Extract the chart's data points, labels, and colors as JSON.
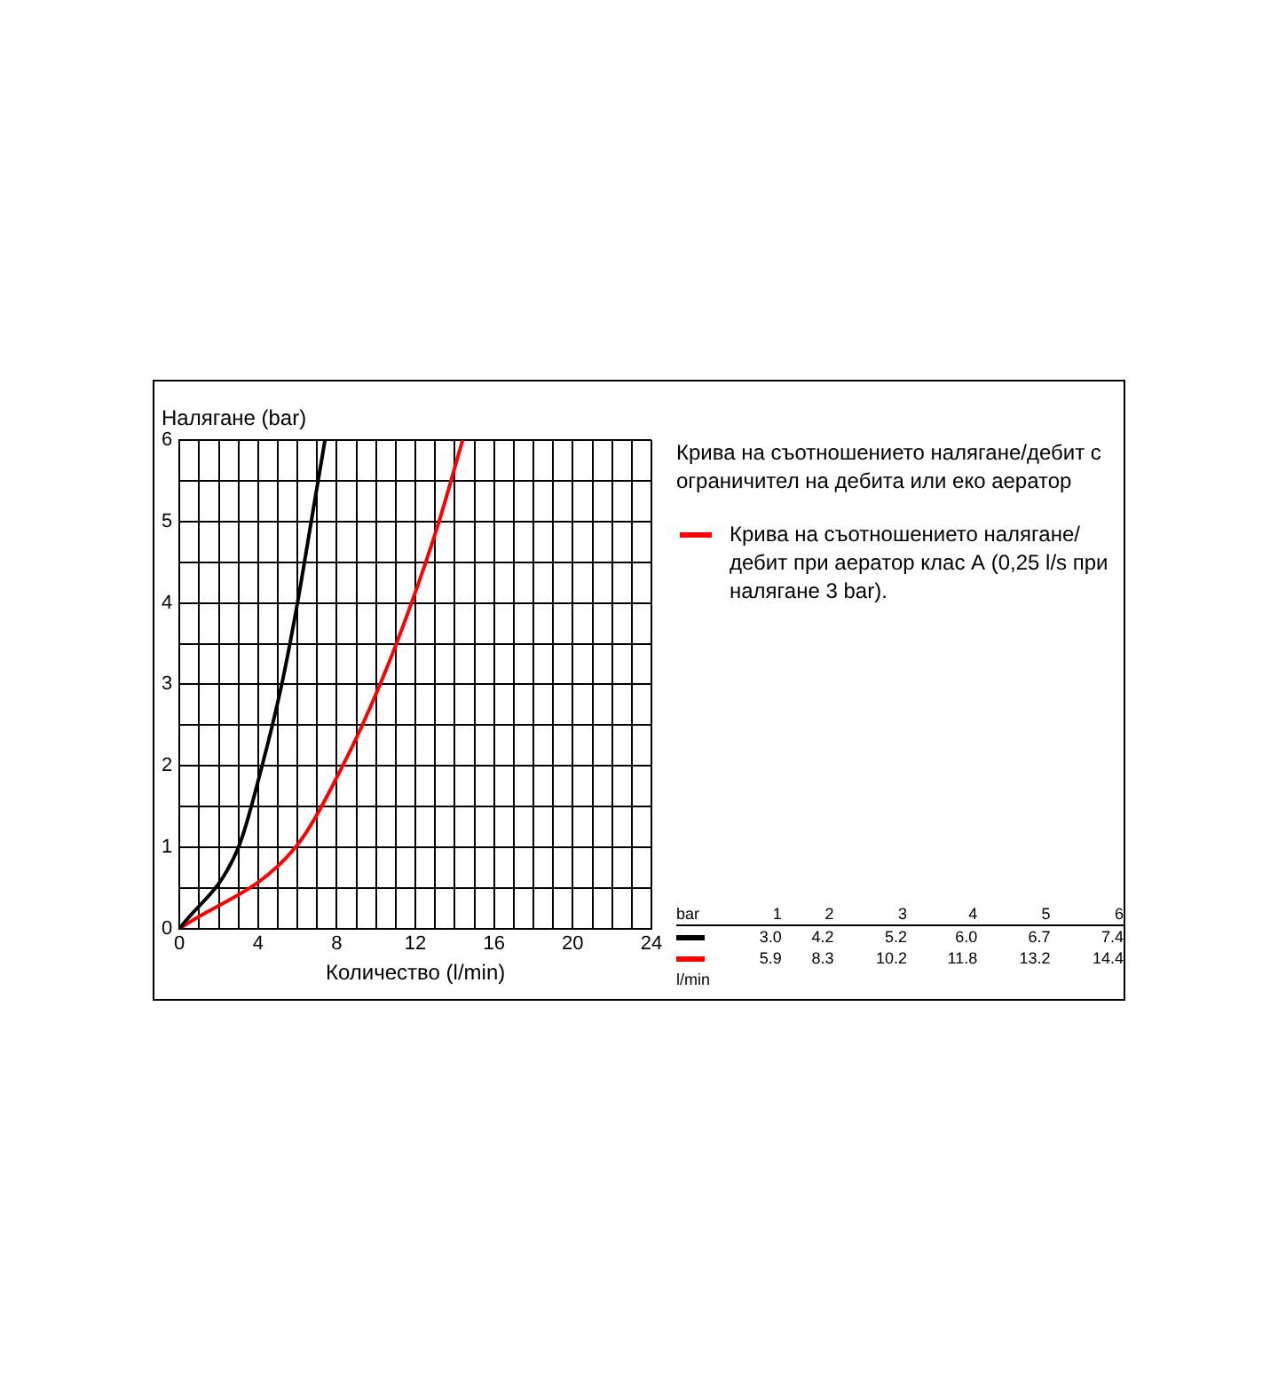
{
  "chart_data": {
    "type": "line",
    "xlabel": "Количество (l/min)",
    "ylabel": "Налягане (bar)",
    "legend_title": "Крива на съотношението налягане/дебит с ограничител на дебита или еко аератор",
    "legend": "right",
    "series": [
      {
        "color": "#000000",
        "x": [
          0,
          3.0,
          4.2,
          5.2,
          6.0,
          6.7,
          7.4
        ],
        "values": [
          0,
          1,
          2,
          3,
          4,
          5,
          6
        ]
      },
      {
        "name": "Крива на съотношението налягане/дебит при аератор клас А (0,25 l/s при налягане 3 bar).",
        "color": "#ff0000",
        "x": [
          0,
          5.9,
          8.3,
          10.2,
          11.8,
          13.2,
          14.4
        ],
        "values": [
          0,
          1,
          2,
          3,
          4,
          5,
          6
        ]
      }
    ],
    "xlim": [
      0,
      24
    ],
    "xticks": [
      0,
      {
        "value": 1,
        "label": null
      },
      {
        "value": 2,
        "label": null
      },
      {
        "value": 3,
        "label": null
      },
      4,
      {
        "value": 5,
        "label": null
      },
      {
        "value": 6,
        "label": null
      },
      {
        "value": 7,
        "label": null
      },
      8,
      {
        "value": 9,
        "label": null
      },
      {
        "value": 10,
        "label": null
      },
      {
        "value": 11,
        "label": null
      },
      12,
      {
        "value": 13,
        "label": null
      },
      {
        "value": 14,
        "label": null
      },
      {
        "value": 15,
        "label": null
      },
      16,
      {
        "value": 17,
        "label": null
      },
      {
        "value": 18,
        "label": null
      },
      {
        "value": 19,
        "label": null
      },
      20,
      {
        "value": 21,
        "label": null
      },
      {
        "value": 22,
        "label": null
      },
      {
        "value": 23,
        "label": null
      },
      24
    ],
    "ylim": [
      0,
      6
    ],
    "yticks": [
      0,
      {
        "value": 0.5,
        "label": null
      },
      1,
      {
        "value": 1.5,
        "label": null
      },
      2,
      {
        "value": 2.5,
        "label": null
      },
      3,
      {
        "value": 3.5,
        "label": null
      },
      4,
      {
        "value": 4.5,
        "label": null
      },
      5,
      {
        "value": 5.5,
        "label": null
      },
      6
    ],
    "grid": true,
    "marker": "none",
    "line_style": "solid",
    "annotations": [
      "bar",
      "1",
      "2",
      "3",
      "4",
      "5",
      "6",
      "3.0",
      "4.2",
      "5.2",
      "6.0",
      "6.7",
      "7.4",
      "5.9",
      "8.3",
      "10.2",
      "11.8",
      "13.2",
      "14.4",
      "l/min"
    ]
  }
}
